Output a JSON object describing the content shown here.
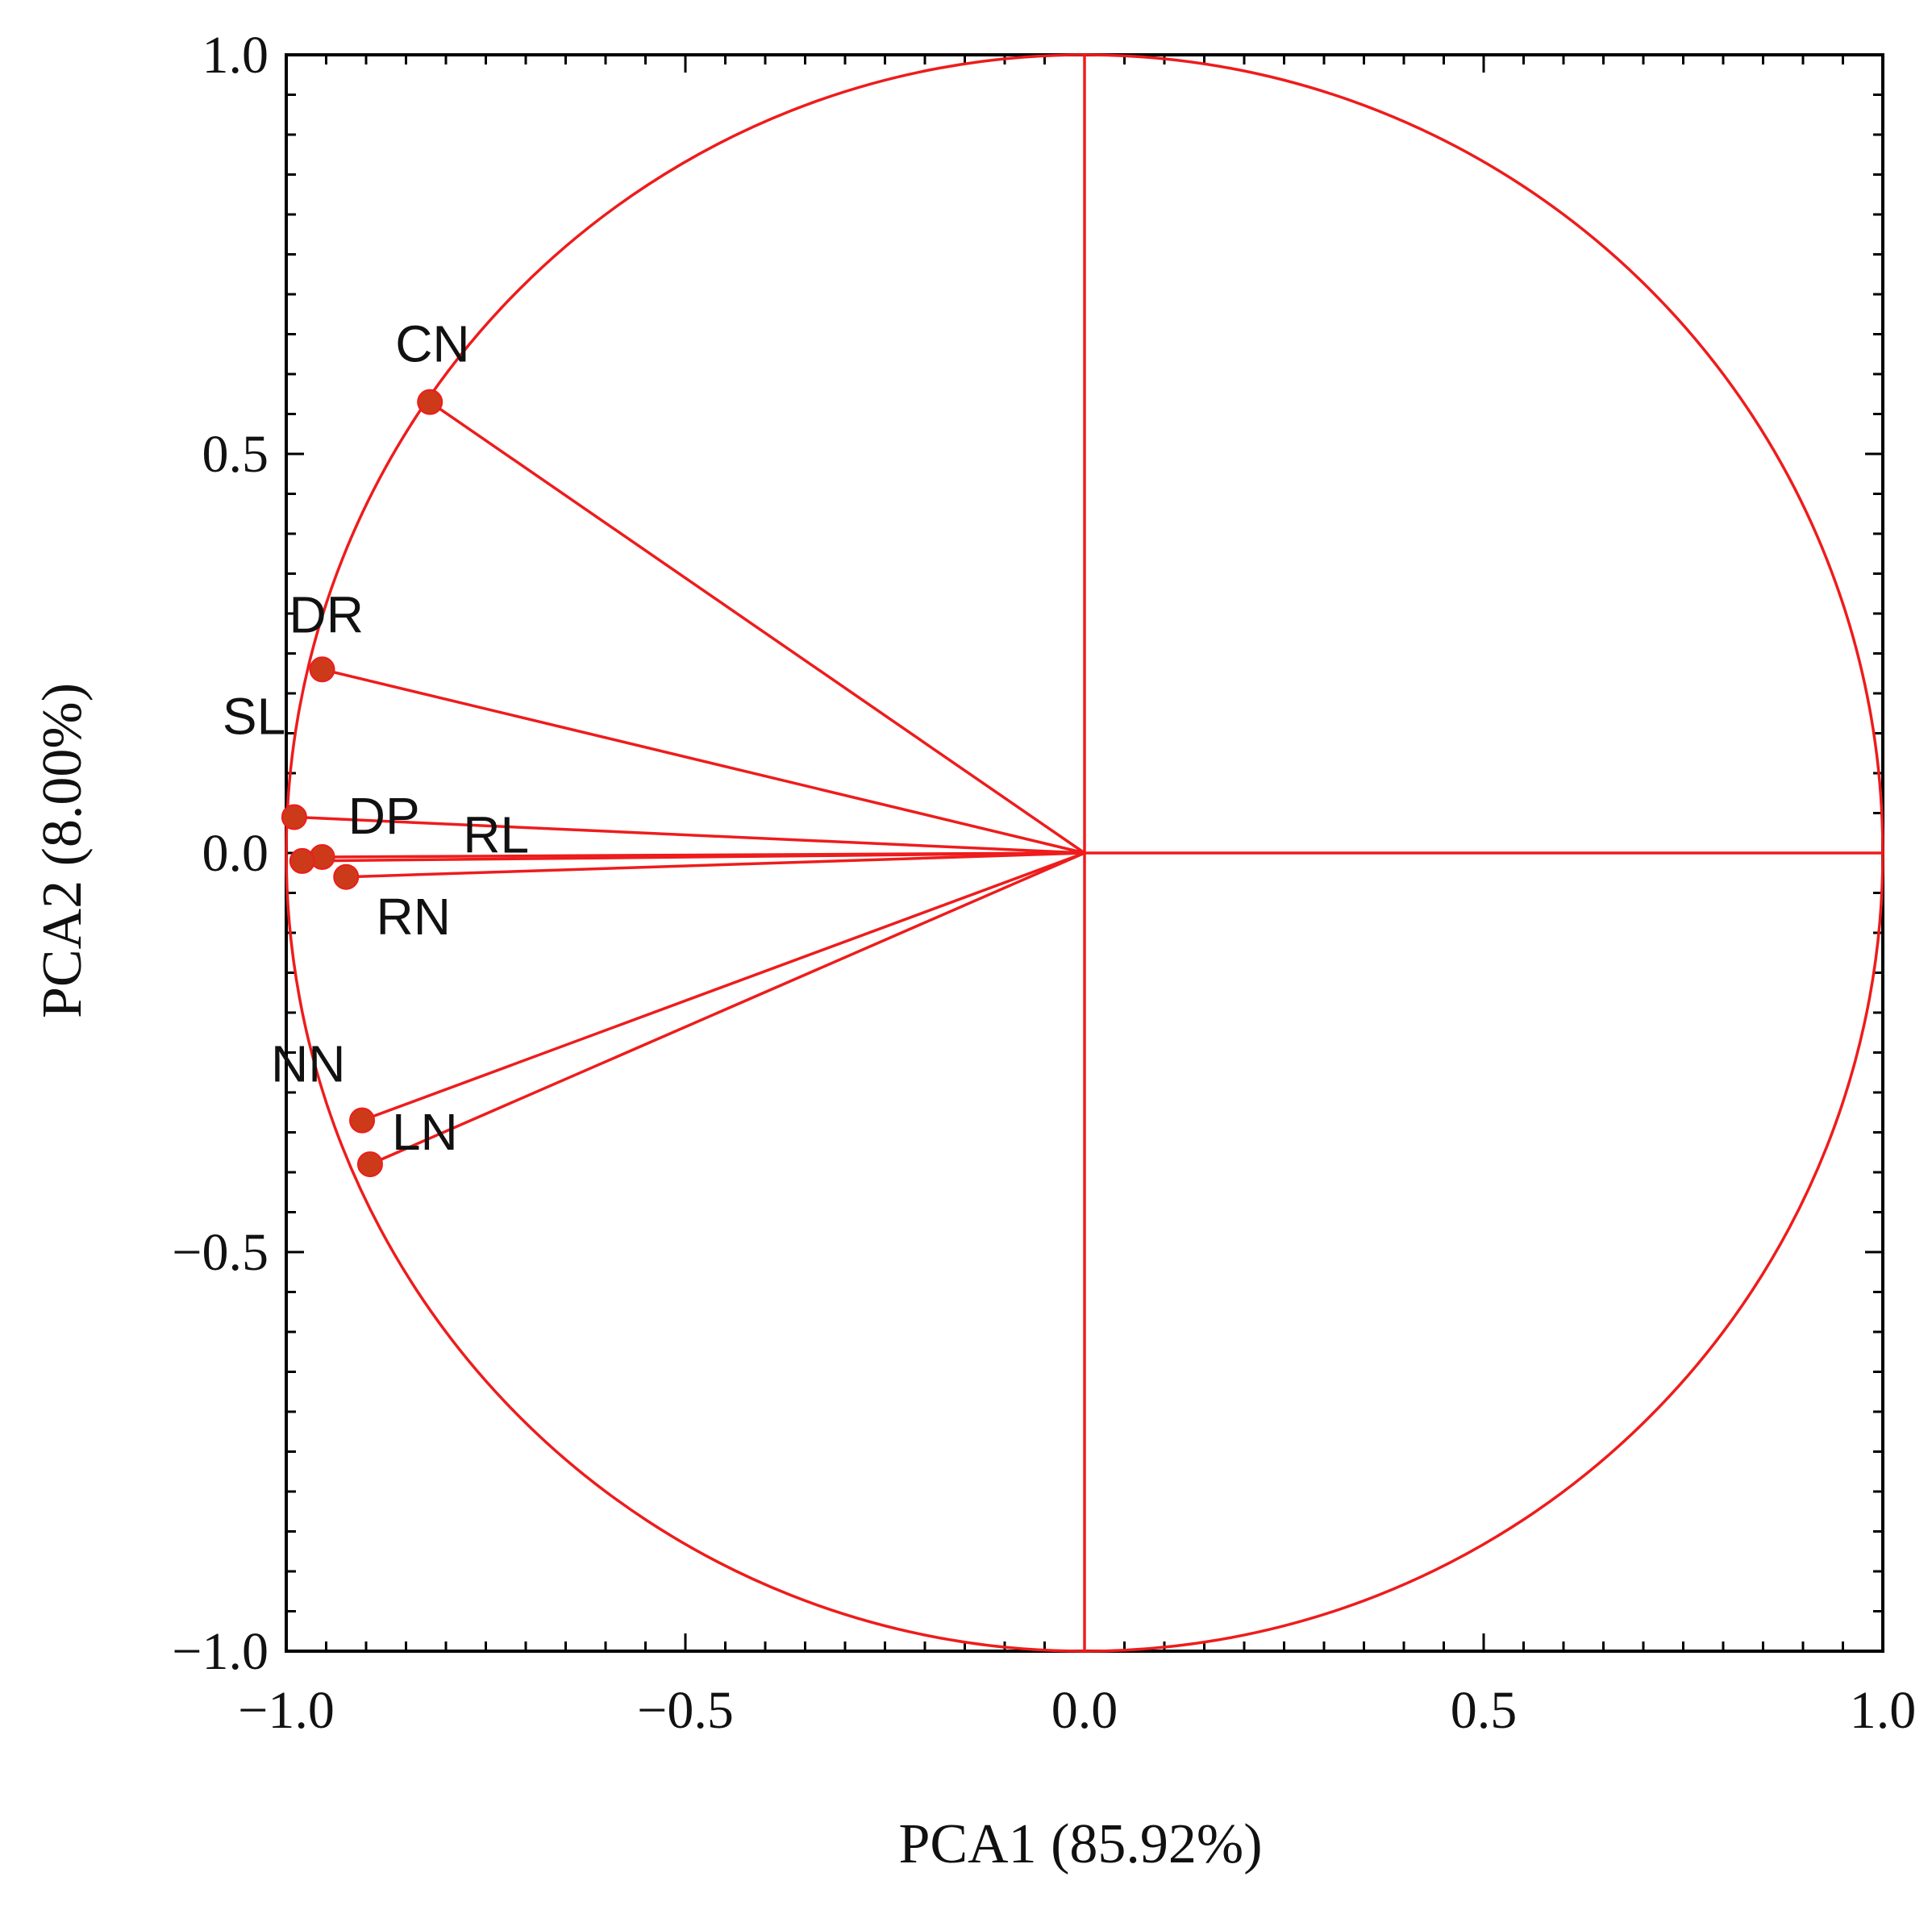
{
  "chart_data": {
    "type": "scatter",
    "subtype": "pca-correlation-circle",
    "title": "",
    "xlabel": "PCA1 (85.92%)",
    "ylabel": "PCA2 (8.00%)",
    "xlim": [
      -1.0,
      1.0
    ],
    "ylim": [
      -1.0,
      1.0
    ],
    "x_ticks": [
      -1.0,
      -0.5,
      0.0,
      0.5,
      1.0
    ],
    "y_ticks": [
      -1.0,
      -0.5,
      0.0,
      0.5,
      1.0
    ],
    "x_tick_labels": [
      "−1.0",
      "−0.5",
      "0.0",
      "0.5",
      "1.0"
    ],
    "y_tick_labels": [
      "−1.0",
      "−0.5",
      "0.0",
      "0.5",
      "1.0"
    ],
    "unit_circle": true,
    "grid": false,
    "line_color": "#ee1c1c",
    "point_color": "#cc3a1a",
    "points": [
      {
        "label": "CN",
        "x": -0.82,
        "y": 0.565
      },
      {
        "label": "DR",
        "x": -0.955,
        "y": 0.23
      },
      {
        "label": "RN",
        "x": -0.955,
        "y": -0.005
      },
      {
        "label": "SL",
        "x": -0.99,
        "y": 0.045
      },
      {
        "label": "DP",
        "x": -0.98,
        "y": -0.01
      },
      {
        "label": "RL",
        "x": -0.925,
        "y": -0.03
      },
      {
        "label": "NN",
        "x": -0.905,
        "y": -0.335
      },
      {
        "label": "LN",
        "x": -0.895,
        "y": -0.39
      }
    ]
  }
}
